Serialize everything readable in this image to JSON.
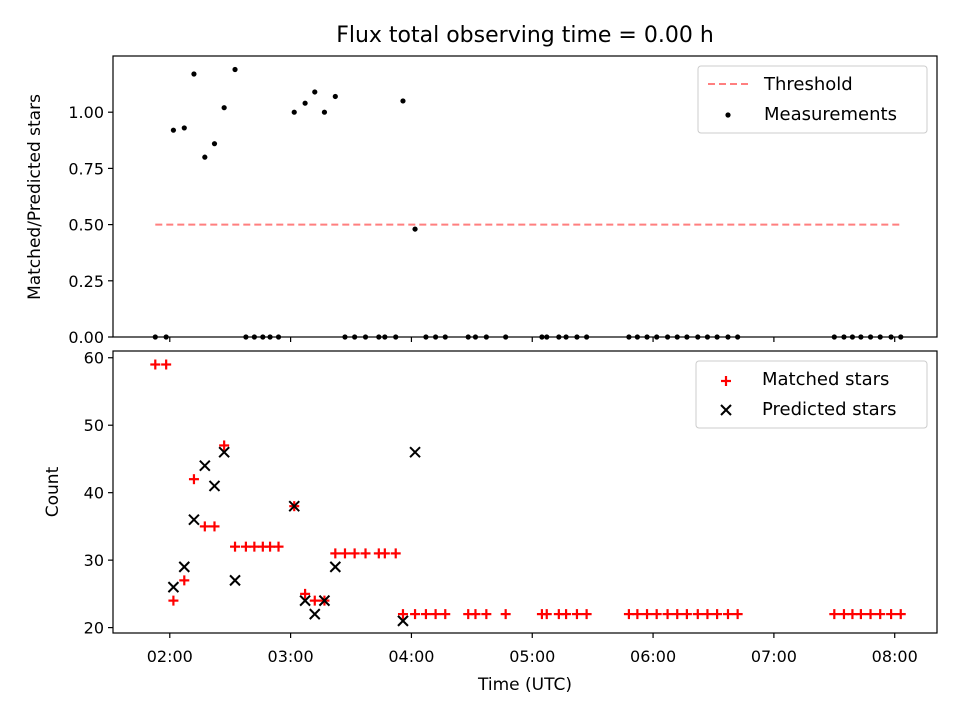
{
  "chart_data": [
    {
      "type": "scatter",
      "title": "Flux total observing time = 0.00 h",
      "xlabel": "",
      "ylabel": "Matched/Predicted stars",
      "xlim_hours": [
        1.53,
        8.35
      ],
      "ylim": [
        0,
        1.25
      ],
      "yticks": [
        0.0,
        0.25,
        0.5,
        0.75,
        1.0
      ],
      "ytick_labels": [
        "0.00",
        "0.25",
        "0.50",
        "0.75",
        "1.00"
      ],
      "legend": {
        "placement": "top-right",
        "entries": [
          "Threshold",
          "Measurements"
        ]
      },
      "threshold": {
        "name": "Threshold",
        "x_start": 1.88,
        "x_end": 8.05,
        "y": 0.5,
        "color": "#ff7f7f"
      },
      "series": [
        {
          "name": "Measurements",
          "color": "#000000",
          "x": [
            1.88,
            1.97,
            2.03,
            2.12,
            2.2,
            2.29,
            2.37,
            2.45,
            2.54,
            2.63,
            2.7,
            2.77,
            2.83,
            2.9,
            3.03,
            3.12,
            3.2,
            3.28,
            3.37,
            3.45,
            3.53,
            3.62,
            3.73,
            3.78,
            3.87,
            3.93,
            4.03,
            4.12,
            4.2,
            4.28,
            4.47,
            4.53,
            4.62,
            4.78,
            5.08,
            5.12,
            5.22,
            5.28,
            5.37,
            5.45,
            5.8,
            5.87,
            5.95,
            6.03,
            6.12,
            6.2,
            6.28,
            6.37,
            6.45,
            6.53,
            6.62,
            6.7,
            7.5,
            7.58,
            7.65,
            7.72,
            7.8,
            7.88,
            7.97,
            8.05
          ],
          "y": [
            0,
            0,
            0.92,
            0.93,
            1.17,
            0.8,
            0.86,
            1.02,
            1.19,
            0,
            0,
            0,
            0,
            0,
            1.0,
            1.04,
            1.09,
            1.0,
            1.07,
            0,
            0,
            0,
            0,
            0,
            0,
            1.05,
            0.48,
            0,
            0,
            0,
            0,
            0,
            0,
            0,
            0,
            0,
            0,
            0,
            0,
            0,
            0,
            0,
            0,
            0,
            0,
            0,
            0,
            0,
            0,
            0,
            0,
            0,
            0,
            0,
            0,
            0,
            0,
            0,
            0,
            0
          ]
        }
      ]
    },
    {
      "type": "scatter",
      "title": "",
      "xlabel": "Time (UTC)",
      "ylabel": "Count",
      "xlim_hours": [
        1.53,
        8.35
      ],
      "ylim": [
        19.2,
        61
      ],
      "yticks": [
        20,
        30,
        40,
        50,
        60
      ],
      "ytick_labels": [
        "20",
        "30",
        "40",
        "50",
        "60"
      ],
      "xticks_hours": [
        2,
        3,
        4,
        5,
        6,
        7,
        8
      ],
      "xtick_labels": [
        "02:00",
        "03:00",
        "04:00",
        "05:00",
        "06:00",
        "07:00",
        "08:00"
      ],
      "legend": {
        "placement": "top-right",
        "entries": [
          "Matched stars",
          "Predicted stars"
        ]
      },
      "series": [
        {
          "name": "Matched stars",
          "marker": "plus",
          "color": "#ff0000",
          "x": [
            1.88,
            1.97,
            2.03,
            2.12,
            2.2,
            2.29,
            2.37,
            2.45,
            2.54,
            2.63,
            2.7,
            2.77,
            2.83,
            2.9,
            3.03,
            3.12,
            3.2,
            3.28,
            3.37,
            3.45,
            3.53,
            3.62,
            3.73,
            3.78,
            3.87,
            3.93,
            4.03,
            4.12,
            4.2,
            4.28,
            4.47,
            4.53,
            4.62,
            4.78,
            5.08,
            5.12,
            5.22,
            5.28,
            5.37,
            5.45,
            5.8,
            5.87,
            5.95,
            6.03,
            6.12,
            6.2,
            6.28,
            6.37,
            6.45,
            6.53,
            6.62,
            6.7,
            7.5,
            7.58,
            7.65,
            7.72,
            7.8,
            7.88,
            7.97,
            8.05
          ],
          "y": [
            59,
            59,
            24,
            27,
            42,
            35,
            35,
            47,
            32,
            32,
            32,
            32,
            32,
            32,
            38,
            25,
            24,
            24,
            31,
            31,
            31,
            31,
            31,
            31,
            31,
            22,
            22,
            22,
            22,
            22,
            22,
            22,
            22,
            22,
            22,
            22,
            22,
            22,
            22,
            22,
            22,
            22,
            22,
            22,
            22,
            22,
            22,
            22,
            22,
            22,
            22,
            22,
            22,
            22,
            22,
            22,
            22,
            22,
            22,
            22
          ]
        },
        {
          "name": "Predicted stars",
          "marker": "x",
          "color": "#000000",
          "x": [
            2.03,
            2.12,
            2.2,
            2.29,
            2.37,
            2.45,
            2.54,
            3.03,
            3.12,
            3.2,
            3.28,
            3.37,
            3.93,
            4.03
          ],
          "y": [
            26,
            29,
            36,
            44,
            41,
            46,
            27,
            38,
            24,
            22,
            24,
            29,
            21,
            46
          ]
        }
      ]
    }
  ]
}
